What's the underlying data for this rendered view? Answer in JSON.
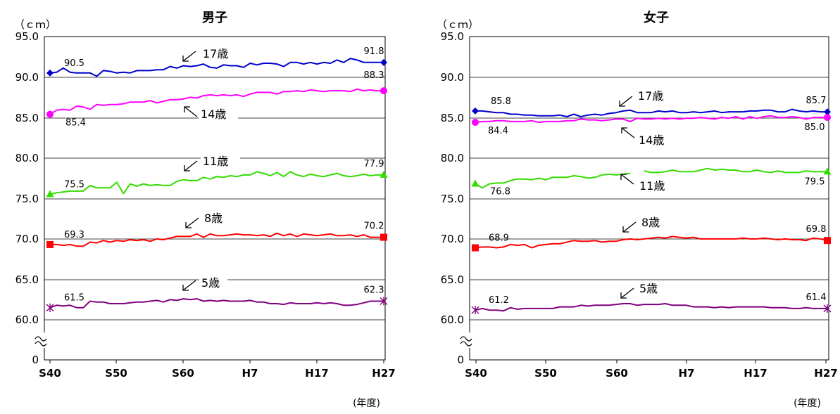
{
  "chart_data": [
    {
      "type": "line",
      "title": "男子",
      "ylabel": "（ｃｍ）",
      "xlabel": "(年度)",
      "y_tick_labels": [
        "0",
        "60.0",
        "65.0",
        "70.0",
        "75.0",
        "80.0",
        "85.0",
        "90.0",
        "95.0"
      ],
      "x_tick_labels": [
        "S40",
        "S50",
        "S60",
        "H7",
        "H17",
        "H27"
      ],
      "ylim": [
        60,
        95
      ],
      "axis_break": true,
      "grid": true,
      "series": [
        {
          "name": "17歳",
          "color": "#0000CC",
          "marker": "diamond",
          "start_label": "90.5",
          "end_label": "91.8",
          "values": [
            90.5,
            90.6,
            91.1,
            90.6,
            90.5,
            90.5,
            90.5,
            90.1,
            90.8,
            90.7,
            90.5,
            90.6,
            90.5,
            90.8,
            90.8,
            90.8,
            90.9,
            90.9,
            91.3,
            91.1,
            91.4,
            91.3,
            91.4,
            91.6,
            91.2,
            91.1,
            91.5,
            91.4,
            91.4,
            91.2,
            91.7,
            91.5,
            91.7,
            91.7,
            91.6,
            91.3,
            91.8,
            91.8,
            91.6,
            91.8,
            91.6,
            91.8,
            91.7,
            92.1,
            91.8,
            92.3,
            92.1,
            91.8,
            91.8,
            91.8,
            91.8
          ]
        },
        {
          "name": "14歳",
          "color": "#FF00FF",
          "marker": "circle",
          "start_label": "85.4",
          "end_label": "88.3",
          "values": [
            85.4,
            85.9,
            86.0,
            85.9,
            86.4,
            86.3,
            86.0,
            86.6,
            86.5,
            86.6,
            86.6,
            86.7,
            86.9,
            86.9,
            86.9,
            87.1,
            86.8,
            87.0,
            87.2,
            87.2,
            87.3,
            87.5,
            87.4,
            87.7,
            87.8,
            87.7,
            87.8,
            87.7,
            87.8,
            87.6,
            87.9,
            88.1,
            88.1,
            88.1,
            87.9,
            88.2,
            88.2,
            88.3,
            88.2,
            88.4,
            88.3,
            88.2,
            88.3,
            88.3,
            88.3,
            88.2,
            88.5,
            88.3,
            88.4,
            88.3,
            88.3
          ]
        },
        {
          "name": "11歳",
          "color": "#33DD00",
          "marker": "triangle",
          "start_label": "75.5",
          "end_label": "77.9",
          "values": [
            75.5,
            75.7,
            75.8,
            75.9,
            75.9,
            75.9,
            76.6,
            76.3,
            76.3,
            76.3,
            77.0,
            75.6,
            76.8,
            76.5,
            76.8,
            76.6,
            76.7,
            76.6,
            76.6,
            77.1,
            77.3,
            77.2,
            77.2,
            77.6,
            77.4,
            77.7,
            77.6,
            77.8,
            77.7,
            77.9,
            77.9,
            78.3,
            78.1,
            77.8,
            78.2,
            77.7,
            78.3,
            77.9,
            77.7,
            78.0,
            77.8,
            77.7,
            77.9,
            78.1,
            77.8,
            77.7,
            77.8,
            78.0,
            77.8,
            77.9,
            77.9
          ]
        },
        {
          "name": "8歳",
          "color": "#FF0000",
          "marker": "square",
          "start_label": "69.3",
          "end_label": "70.2",
          "values": [
            69.3,
            69.3,
            69.2,
            69.3,
            69.1,
            69.1,
            69.6,
            69.5,
            69.8,
            69.6,
            69.8,
            69.7,
            69.9,
            69.8,
            69.9,
            69.7,
            70.0,
            69.9,
            70.1,
            70.3,
            70.3,
            70.3,
            70.6,
            70.2,
            70.6,
            70.4,
            70.4,
            70.5,
            70.6,
            70.5,
            70.5,
            70.4,
            70.5,
            70.3,
            70.7,
            70.4,
            70.6,
            70.3,
            70.6,
            70.5,
            70.4,
            70.5,
            70.6,
            70.4,
            70.4,
            70.5,
            70.3,
            70.5,
            70.2,
            70.2,
            70.2
          ]
        },
        {
          "name": "5歳",
          "color": "#800080",
          "marker": "star",
          "start_label": "61.5",
          "end_label": "62.3",
          "values": [
            61.5,
            61.8,
            61.7,
            61.8,
            61.5,
            61.5,
            62.3,
            62.2,
            62.2,
            62.0,
            62.0,
            62.0,
            62.1,
            62.2,
            62.2,
            62.3,
            62.4,
            62.2,
            62.5,
            62.4,
            62.6,
            62.5,
            62.6,
            62.3,
            62.4,
            62.3,
            62.4,
            62.3,
            62.3,
            62.3,
            62.4,
            62.2,
            62.2,
            62.0,
            62.0,
            61.9,
            62.1,
            62.0,
            62.0,
            62.0,
            62.1,
            62.0,
            62.1,
            62.0,
            61.8,
            61.8,
            61.9,
            62.1,
            62.3,
            62.3,
            62.3
          ]
        }
      ]
    },
    {
      "type": "line",
      "title": "女子",
      "ylabel": "（ｃｍ）",
      "xlabel": "(年度)",
      "y_tick_labels": [
        "0",
        "60.0",
        "65.0",
        "70.0",
        "75.0",
        "80.0",
        "85.0",
        "90.0",
        "95.0"
      ],
      "x_tick_labels": [
        "S40",
        "S50",
        "S60",
        "H7",
        "H17",
        "H27"
      ],
      "ylim": [
        60,
        95
      ],
      "axis_break": true,
      "grid": true,
      "series": [
        {
          "name": "17歳",
          "color": "#0000CC",
          "marker": "diamond",
          "start_label": "85.8",
          "end_label": "85.7",
          "values": [
            85.8,
            85.8,
            85.7,
            85.6,
            85.6,
            85.4,
            85.4,
            85.3,
            85.3,
            85.2,
            85.2,
            85.2,
            85.3,
            85.1,
            85.4,
            85.1,
            85.3,
            85.4,
            85.3,
            85.5,
            85.6,
            85.8,
            85.9,
            85.6,
            85.6,
            85.6,
            85.8,
            85.7,
            85.8,
            85.6,
            85.6,
            85.7,
            85.6,
            85.7,
            85.8,
            85.6,
            85.7,
            85.7,
            85.7,
            85.8,
            85.8,
            85.9,
            85.9,
            85.7,
            85.7,
            86.0,
            85.8,
            85.7,
            85.8,
            85.7,
            85.7
          ]
        },
        {
          "name": "14歳",
          "color": "#FF00FF",
          "marker": "circle",
          "start_label": "84.4",
          "end_label": "85.0",
          "values": [
            84.4,
            84.5,
            84.5,
            84.6,
            84.6,
            84.5,
            84.5,
            84.5,
            84.6,
            84.4,
            84.5,
            84.5,
            84.5,
            84.6,
            84.6,
            84.8,
            84.7,
            84.7,
            84.6,
            84.7,
            84.8,
            84.8,
            84.5,
            84.9,
            84.8,
            84.8,
            84.9,
            84.8,
            84.9,
            84.8,
            84.9,
            84.9,
            85.0,
            84.9,
            84.8,
            85.0,
            84.9,
            85.1,
            84.8,
            85.1,
            84.9,
            85.1,
            85.2,
            85.0,
            85.0,
            85.1,
            85.0,
            84.8,
            85.0,
            85.0,
            85.0
          ]
        },
        {
          "name": "11歳",
          "color": "#33DD00",
          "marker": "triangle",
          "start_label": "76.8",
          "end_label": "79.5",
          "values": [
            76.8,
            76.3,
            76.8,
            76.9,
            76.9,
            77.2,
            77.4,
            77.4,
            77.3,
            77.5,
            77.3,
            77.6,
            77.6,
            77.6,
            77.8,
            77.7,
            77.5,
            77.6,
            77.9,
            78.0,
            77.9,
            78.0,
            78.1,
            null,
            78.4,
            78.2,
            78.2,
            78.3,
            78.5,
            78.3,
            78.3,
            78.3,
            78.5,
            78.7,
            78.5,
            78.6,
            78.5,
            78.5,
            78.3,
            78.3,
            78.5,
            78.3,
            78.2,
            78.4,
            78.2,
            78.2,
            78.2,
            78.4,
            78.3,
            78.3,
            78.3
          ]
        },
        {
          "name": "8歳",
          "color": "#FF0000",
          "marker": "square",
          "start_label": "68.9",
          "end_label": "69.8",
          "values": [
            68.9,
            69.0,
            69.0,
            68.9,
            69.0,
            69.3,
            69.2,
            69.3,
            68.9,
            69.2,
            69.3,
            69.4,
            69.4,
            69.6,
            69.8,
            69.7,
            69.7,
            69.8,
            69.6,
            69.7,
            69.7,
            69.9,
            70.0,
            69.9,
            70.0,
            70.1,
            70.2,
            70.1,
            70.3,
            70.2,
            70.1,
            70.2,
            70.0,
            70.0,
            70.0,
            70.0,
            70.0,
            70.0,
            70.1,
            70.0,
            70.0,
            70.1,
            70.0,
            69.9,
            70.0,
            69.9,
            69.9,
            69.8,
            70.1,
            70.0,
            69.8
          ]
        },
        {
          "name": "5歳",
          "color": "#800080",
          "marker": "star",
          "start_label": "61.2",
          "end_label": "61.4",
          "values": [
            61.2,
            61.4,
            61.2,
            61.2,
            61.1,
            61.5,
            61.3,
            61.4,
            61.4,
            61.4,
            61.4,
            61.4,
            61.6,
            61.6,
            61.6,
            61.8,
            61.7,
            61.8,
            61.8,
            61.8,
            61.9,
            62.0,
            62.0,
            61.8,
            61.9,
            61.9,
            61.9,
            62.0,
            61.8,
            61.8,
            61.8,
            61.6,
            61.6,
            61.6,
            61.5,
            61.6,
            61.5,
            61.6,
            61.6,
            61.6,
            61.6,
            61.6,
            61.5,
            61.5,
            61.5,
            61.4,
            61.4,
            61.5,
            61.4,
            61.4,
            61.4
          ]
        }
      ]
    }
  ]
}
